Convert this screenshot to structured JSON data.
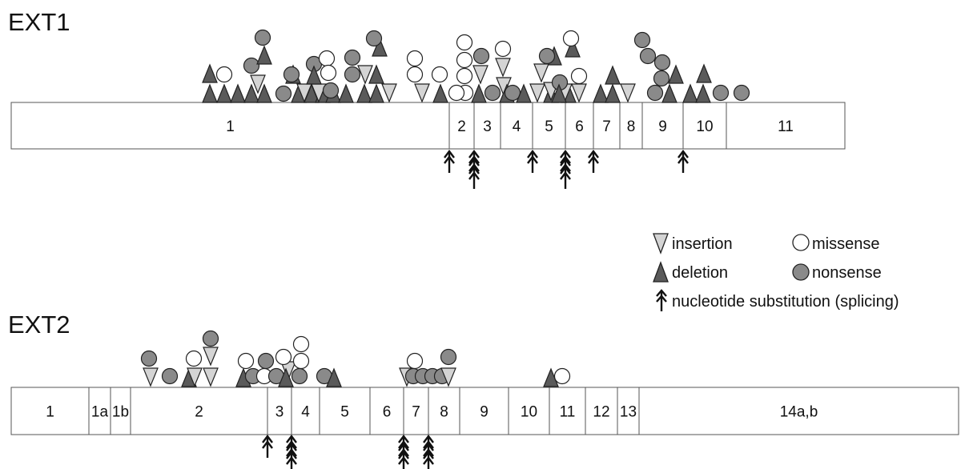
{
  "legend": {
    "insertion": "insertion",
    "missense": "missense",
    "deletion": "deletion",
    "nonsense": "nonsense",
    "splicing": "nucleotide substitution (splicing)"
  },
  "colors": {
    "insertion": "#d4d4d4",
    "deletion": "#5a5a5a",
    "missense": "#ffffff",
    "nonsense": "#8a8a8a",
    "outline": "#222222"
  },
  "icons": {
    "insertion": "down-triangle-icon",
    "deletion": "up-triangle-icon",
    "missense": "open-circle-icon",
    "nonsense": "filled-circle-icon",
    "splicing": "double-arrow-icon"
  },
  "genes": [
    {
      "name": "EXT1",
      "exons": [
        "1",
        "2",
        "3",
        "4",
        "5",
        "6",
        "7",
        "8",
        "9",
        "10",
        "11"
      ],
      "splicing_exons": [
        "2",
        "3",
        "5",
        "6",
        "7",
        "10"
      ]
    },
    {
      "name": "EXT2",
      "exons": [
        "1",
        "1a",
        "1b",
        "2",
        "3",
        "4",
        "5",
        "6",
        "7",
        "8",
        "9",
        "10",
        "11",
        "12",
        "13",
        "14a,b"
      ],
      "splicing_exons": [
        "3",
        "4",
        "7",
        "8"
      ]
    }
  ]
}
